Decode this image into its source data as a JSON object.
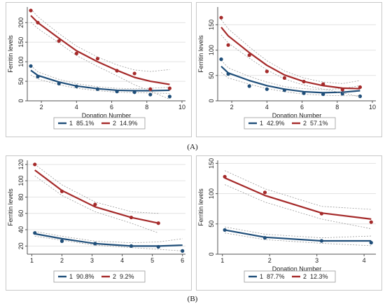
{
  "figure_labels": {
    "a": "(A)",
    "b": "(B)"
  },
  "colors": {
    "class1": "#1f4e79",
    "class2": "#a52a2a",
    "ci": "#9a9a9a",
    "grid": "#e3e3e3"
  },
  "chart_data": [
    {
      "type": "line",
      "xlabel": "Donation Number",
      "ylabel": "Ferritin levels",
      "xlim": [
        1.2,
        10.2
      ],
      "ylim": [
        0,
        240
      ],
      "xticks": [
        2,
        4,
        6,
        8,
        10
      ],
      "yticks": [
        0,
        50,
        100,
        150,
        200
      ],
      "legend": [
        {
          "key": "1",
          "pct": "85.1%"
        },
        {
          "key": "2",
          "pct": "14.9%"
        }
      ],
      "series": [
        {
          "name": "1",
          "x": [
            1.4,
            1.8,
            3.0,
            4.0,
            5.2,
            6.3,
            7.3,
            8.2,
            9.3
          ],
          "fit": [
            78,
            65,
            48,
            38,
            31,
            27,
            26,
            26,
            27
          ],
          "observed": [
            89,
            62,
            44,
            37,
            30,
            24,
            22,
            16,
            11
          ],
          "ci_upper": [
            90,
            74,
            55,
            44,
            36,
            32,
            31,
            32,
            35
          ],
          "ci_lower": [
            66,
            56,
            41,
            32,
            26,
            22,
            21,
            20,
            19
          ]
        },
        {
          "name": "2",
          "x": [
            1.4,
            1.8,
            3.0,
            4.0,
            5.2,
            6.3,
            7.3,
            8.2,
            9.3
          ],
          "fit": [
            218,
            200,
            160,
            128,
            100,
            78,
            60,
            50,
            42
          ],
          "observed": [
            231,
            200,
            153,
            121,
            108,
            77,
            70,
            30,
            32
          ],
          "ci_upper": [
            235,
            215,
            172,
            140,
            112,
            92,
            79,
            75,
            80
          ],
          "ci_lower": [
            201,
            185,
            148,
            116,
            88,
            64,
            41,
            25,
            4
          ]
        }
      ]
    },
    {
      "type": "line",
      "xlabel": "Donation Number",
      "ylabel": "Ferritin levels",
      "xlim": [
        1.2,
        10.2
      ],
      "ylim": [
        0,
        185
      ],
      "xticks": [
        2,
        4,
        6,
        8,
        10
      ],
      "yticks": [
        0,
        50,
        100,
        150
      ],
      "legend": [
        {
          "key": "1",
          "pct": "42.9%"
        },
        {
          "key": "2",
          "pct": "57.1%"
        }
      ],
      "series": [
        {
          "name": "1",
          "x": [
            1.4,
            1.8,
            3.0,
            4.0,
            5.0,
            6.1,
            7.2,
            8.3,
            9.3
          ],
          "fit": [
            68,
            55,
            40,
            30,
            23,
            18,
            16,
            17,
            20
          ],
          "observed": [
            82,
            53,
            29,
            23,
            21,
            15,
            13,
            14,
            9
          ],
          "ci_upper": [
            80,
            65,
            48,
            37,
            28,
            24,
            22,
            24,
            30
          ],
          "ci_lower": [
            56,
            45,
            33,
            24,
            18,
            13,
            11,
            10,
            10
          ]
        },
        {
          "name": "2",
          "x": [
            1.4,
            1.8,
            3.0,
            4.0,
            5.0,
            6.1,
            7.2,
            8.3,
            9.3
          ],
          "fit": [
            145,
            128,
            95,
            70,
            51,
            38,
            30,
            25,
            24
          ],
          "observed": [
            164,
            110,
            90,
            58,
            45,
            38,
            33,
            22,
            27
          ],
          "ci_upper": [
            160,
            142,
            106,
            79,
            59,
            45,
            37,
            34,
            40
          ],
          "ci_lower": [
            130,
            114,
            84,
            61,
            43,
            31,
            23,
            16,
            8
          ]
        }
      ]
    },
    {
      "type": "line",
      "xlabel": "",
      "ylabel": "Ferritin levels",
      "xlim": [
        0.85,
        6.1
      ],
      "ylim": [
        10,
        125
      ],
      "xticks": [
        1,
        2,
        3,
        4,
        5,
        6
      ],
      "yticks": [
        20,
        40,
        60,
        80,
        100,
        120
      ],
      "legend": [
        {
          "key": "1",
          "pct": "90.8%"
        },
        {
          "key": "2",
          "pct": "9.2%"
        }
      ],
      "series": [
        {
          "name": "1",
          "x": [
            1.1,
            2.0,
            3.1,
            4.3,
            5.2,
            6.0
          ],
          "fit": [
            35,
            29,
            23,
            20,
            20,
            21
          ],
          "observed": [
            36,
            26,
            23,
            20,
            19,
            14
          ],
          "ci_upper": [
            38,
            32,
            26,
            24,
            25,
            29
          ],
          "ci_lower": [
            32,
            27,
            21,
            18,
            16,
            14
          ]
        },
        {
          "name": "2",
          "x": [
            1.1,
            2.0,
            3.1,
            4.3,
            5.2
          ],
          "fit": [
            113,
            88,
            68,
            55,
            48
          ],
          "observed": [
            120,
            87,
            71,
            55,
            48
          ],
          "ci_upper": [
            120,
            95,
            74,
            62,
            60
          ],
          "ci_lower": [
            106,
            82,
            62,
            48,
            36
          ]
        }
      ]
    },
    {
      "type": "line",
      "xlabel": "Donation Number",
      "ylabel": "Ferritin levels",
      "xlim": [
        0.9,
        4.25
      ],
      "ylim": [
        0,
        155
      ],
      "xticks": [
        1,
        2,
        3,
        4
      ],
      "yticks": [
        0,
        50,
        100,
        150
      ],
      "legend": [
        {
          "key": "1",
          "pct": "87.7%"
        },
        {
          "key": "2",
          "pct": "12.3%"
        }
      ],
      "series": [
        {
          "name": "1",
          "x": [
            1.05,
            1.9,
            3.1,
            4.15
          ],
          "fit": [
            40,
            28,
            22,
            22
          ],
          "observed": [
            40,
            27,
            22,
            19
          ],
          "ci_upper": [
            45,
            33,
            27,
            30
          ],
          "ci_lower": [
            35,
            24,
            18,
            14
          ]
        },
        {
          "name": "2",
          "x": [
            1.05,
            1.9,
            3.1,
            4.15
          ],
          "fit": [
            126,
            97,
            68,
            58
          ],
          "observed": [
            128,
            102,
            67,
            53
          ],
          "ci_upper": [
            138,
            108,
            79,
            74
          ],
          "ci_lower": [
            115,
            86,
            58,
            42
          ]
        }
      ]
    }
  ]
}
